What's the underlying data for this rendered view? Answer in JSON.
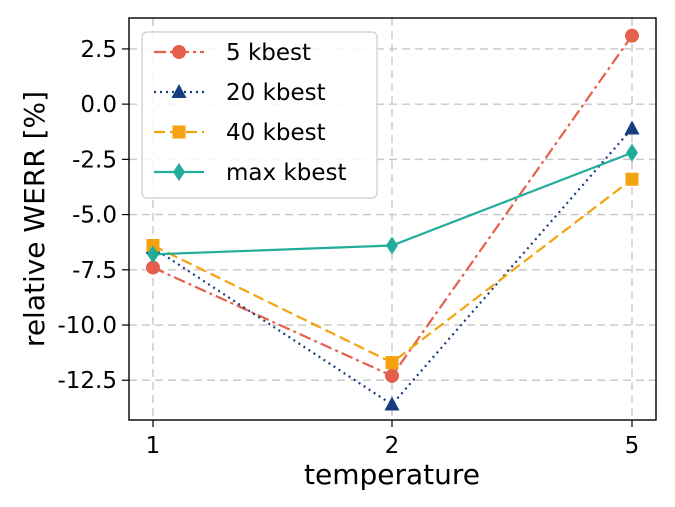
{
  "chart_data": {
    "type": "line",
    "xlabel": "temperature",
    "ylabel": "relative WERR [%]",
    "categories": [
      "1",
      "2",
      "5"
    ],
    "ylim": [
      -14.3,
      3.9
    ],
    "yticks": [
      2.5,
      0.0,
      -2.5,
      -5.0,
      -7.5,
      -10.0,
      -12.5
    ],
    "ytick_labels": [
      "2.5",
      "0.0",
      "-2.5",
      "-5.0",
      "-7.5",
      "-10.0",
      "-12.5"
    ],
    "grid": true,
    "legend_position": "top-left",
    "series": [
      {
        "name": "5 kbest",
        "values": [
          -7.4,
          -12.3,
          3.1
        ],
        "color": "#e5604b",
        "dash": "dashdot",
        "marker": "circle"
      },
      {
        "name": "20 kbest",
        "values": [
          -6.5,
          -13.6,
          -1.1
        ],
        "color": "#173d80",
        "dash": "dotted",
        "marker": "triangle"
      },
      {
        "name": "40 kbest",
        "values": [
          -6.4,
          -11.7,
          -3.4
        ],
        "color": "#f5a20f",
        "dash": "dashed",
        "marker": "square"
      },
      {
        "name": "max kbest",
        "values": [
          -6.8,
          -6.4,
          -2.2
        ],
        "color": "#22ad9a",
        "dash": "solid",
        "marker": "diamond"
      }
    ]
  }
}
